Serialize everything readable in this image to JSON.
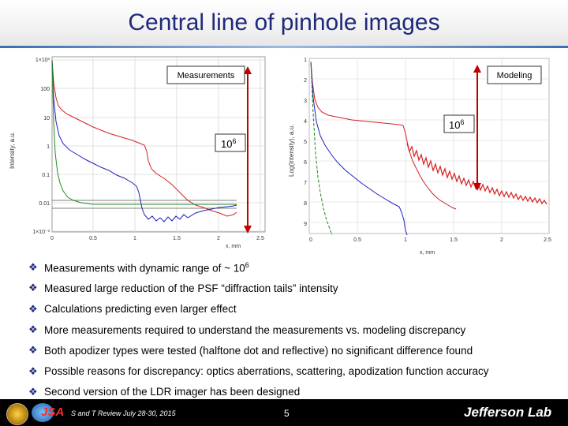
{
  "title": "Central line of pinhole images",
  "left_plot": {
    "label_measurements": "Measurements",
    "ylabel": "Intensity, a.u.",
    "xlabel": "x, mm",
    "yticks": [
      "1×10³",
      "100",
      "10",
      "1",
      "0.1",
      "0.01",
      "1×10⁻³"
    ],
    "xticks": [
      "0",
      "0.5",
      "1",
      "1.5",
      "2",
      "2.5"
    ],
    "range_label": "10",
    "range_exp": "6"
  },
  "right_plot": {
    "label_modeling": "Modeling",
    "ylabel": "Log(Intensity), a.u.",
    "xlabel": "x, mm",
    "yticks": [
      "1",
      "2",
      "3",
      "4",
      "5",
      "6",
      "7",
      "8",
      "9"
    ],
    "xticks": [
      "0",
      "0.5",
      "1",
      "1.5",
      "2",
      "2.5"
    ],
    "range_label": "10",
    "range_exp": "6"
  },
  "bullets": [
    {
      "text": "Measurements with dynamic range of ~ 10",
      "sup": "6"
    },
    {
      "text": "Measured large reduction of the PSF “diffraction tails” intensity",
      "sup": ""
    },
    {
      "text": "Calculations predicting even larger effect",
      "sup": ""
    },
    {
      "text": "More measurements required to understand the measurements vs. modeling discrepancy",
      "sup": ""
    },
    {
      "text": "Both apodizer types were tested (halftone dot and reflective) no significant difference found",
      "sup": ""
    },
    {
      "text": "Possible reasons for discrepancy: optics aberrations, scattering, apodization function accuracy",
      "sup": ""
    },
    {
      "text": "Second version of the LDR imager has been designed",
      "sup": ""
    }
  ],
  "bullet_mark": "❖",
  "footer": {
    "event": "S and T Review July 28-30, 2015",
    "page": "5",
    "lab": "Jefferson Lab"
  },
  "colors": {
    "title": "#1f2a7a",
    "red": "#d42020",
    "blue": "#2020c0",
    "green": "#208a20",
    "arrow": "#c00000"
  }
}
